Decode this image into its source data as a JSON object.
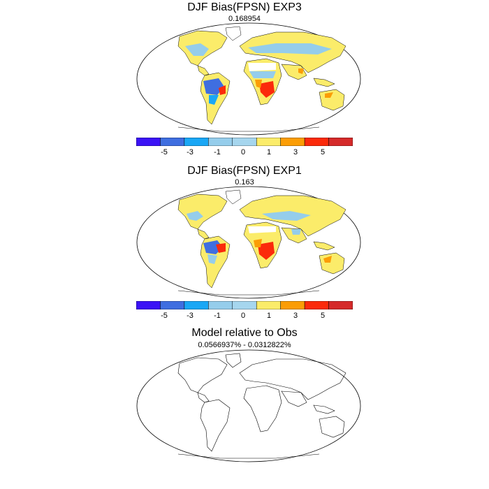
{
  "panels": [
    {
      "title": "DJF Bias(FPSN) EXP3",
      "subtitle": "0.168954"
    },
    {
      "title": "DJF Bias(FPSN) EXP1",
      "subtitle": "0.163"
    },
    {
      "title": "Model relative to Obs",
      "subtitle": "0.0566937% - 0.0312822%"
    }
  ],
  "legend": {
    "colors": [
      "#3b12f5",
      "#3f6ee0",
      "#1aa7f5",
      "#95cdeb",
      "#a6d6ee",
      "#fbec6a",
      "#fb9d06",
      "#fb2a0b",
      "#d52a2a"
    ],
    "labels": [
      "-5",
      "-3",
      "-1",
      "0",
      "1",
      "3",
      "5"
    ]
  }
}
